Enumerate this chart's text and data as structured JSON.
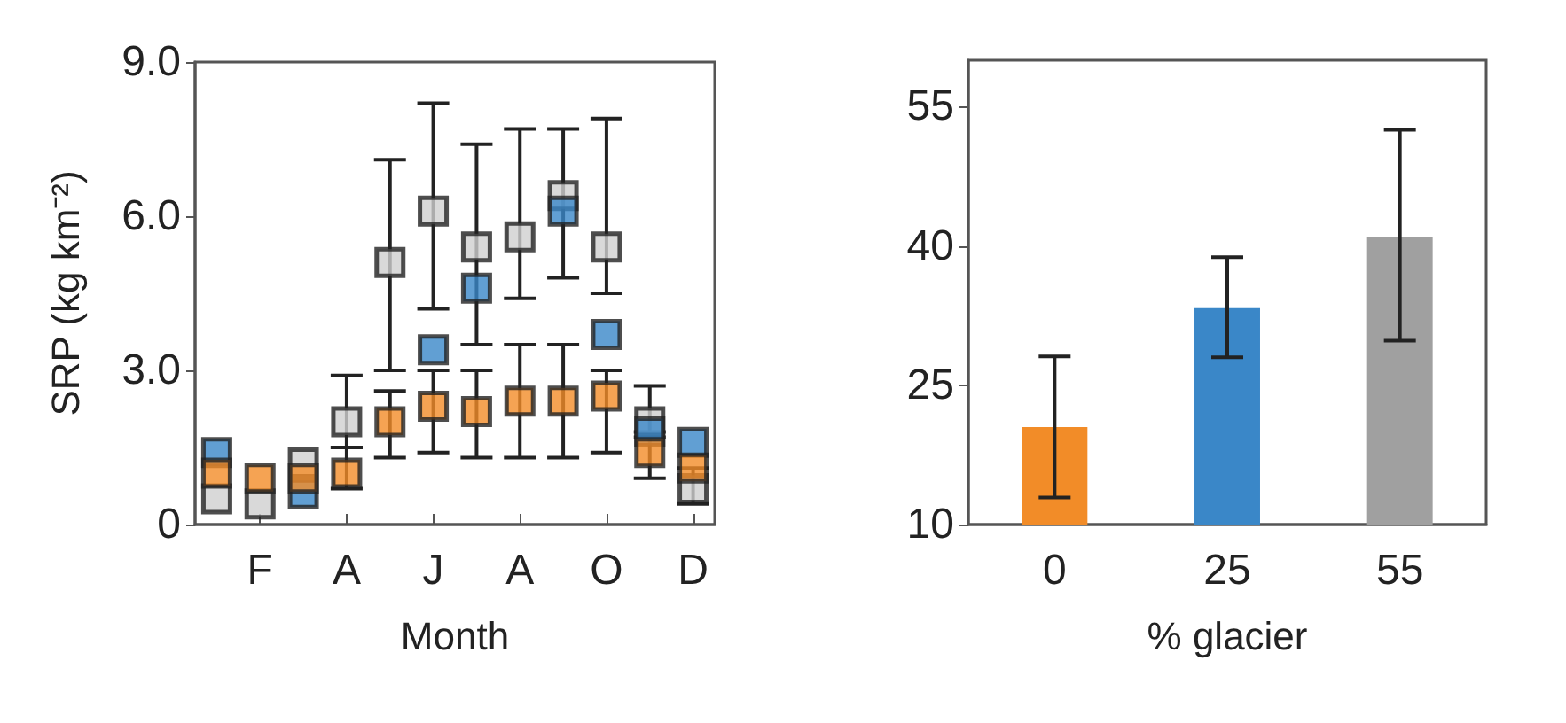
{
  "chart_data": [
    {
      "type": "scatter",
      "xlabel": "Month",
      "ylabel": "SRP (kg km⁻²)",
      "marker": "square",
      "categories": [
        null,
        "F",
        null,
        "A",
        null,
        "J",
        null,
        "A",
        null,
        "O",
        null,
        "D"
      ],
      "ylim": [
        0,
        9
      ],
      "yticks": [
        0,
        {
          "value": 3,
          "label": "3.0"
        },
        {
          "value": 6,
          "label": "6.0"
        },
        {
          "value": 9,
          "label": "9.0"
        }
      ],
      "series": [
        {
          "color": "#cfcfcf",
          "values": [
            0.5,
            0.4,
            1.2,
            2.0,
            5.1,
            6.1,
            5.4,
            5.6,
            6.4,
            5.4,
            2.0,
            0.7
          ],
          "errors": [
            null,
            null,
            null,
            [
              1.5,
              2.9
            ],
            [
              3.0,
              7.1
            ],
            [
              4.2,
              8.2
            ],
            [
              3.5,
              7.4
            ],
            [
              4.4,
              7.7
            ],
            [
              4.8,
              7.7
            ],
            [
              4.5,
              7.9
            ],
            [
              1.8,
              2.7
            ],
            null
          ]
        },
        {
          "color": "#3a87c8",
          "values": [
            1.4,
            null,
            0.6,
            null,
            null,
            3.4,
            4.6,
            null,
            6.1,
            3.7,
            1.8,
            1.6
          ]
        },
        {
          "color": "#f28c28",
          "values": [
            1.0,
            0.9,
            0.9,
            1.0,
            2.0,
            2.3,
            2.2,
            2.4,
            2.4,
            2.5,
            1.4,
            1.1
          ],
          "errors": [
            null,
            null,
            null,
            [
              0.7,
              1.5
            ],
            [
              1.3,
              2.6
            ],
            [
              1.4,
              3.0
            ],
            [
              1.3,
              3.0
            ],
            [
              1.3,
              3.5
            ],
            [
              1.3,
              3.5
            ],
            [
              1.4,
              3.0
            ],
            [
              0.9,
              1.7
            ],
            [
              0.4,
              1.1
            ]
          ]
        }
      ]
    },
    {
      "type": "bar",
      "xlabel": "% glacier",
      "categories": [
        "0",
        "25",
        "55"
      ],
      "ylim": [
        10,
        60
      ],
      "yticks": [
        10,
        25,
        40,
        55
      ],
      "values": [
        20.5,
        33.3,
        41.0
      ],
      "colors": [
        "#f28c28",
        "#3a87c8",
        "#a0a0a0"
      ],
      "errors": [
        [
          12.9,
          28.1
        ],
        [
          28.0,
          38.8
        ],
        [
          29.8,
          52.5
        ]
      ]
    }
  ]
}
